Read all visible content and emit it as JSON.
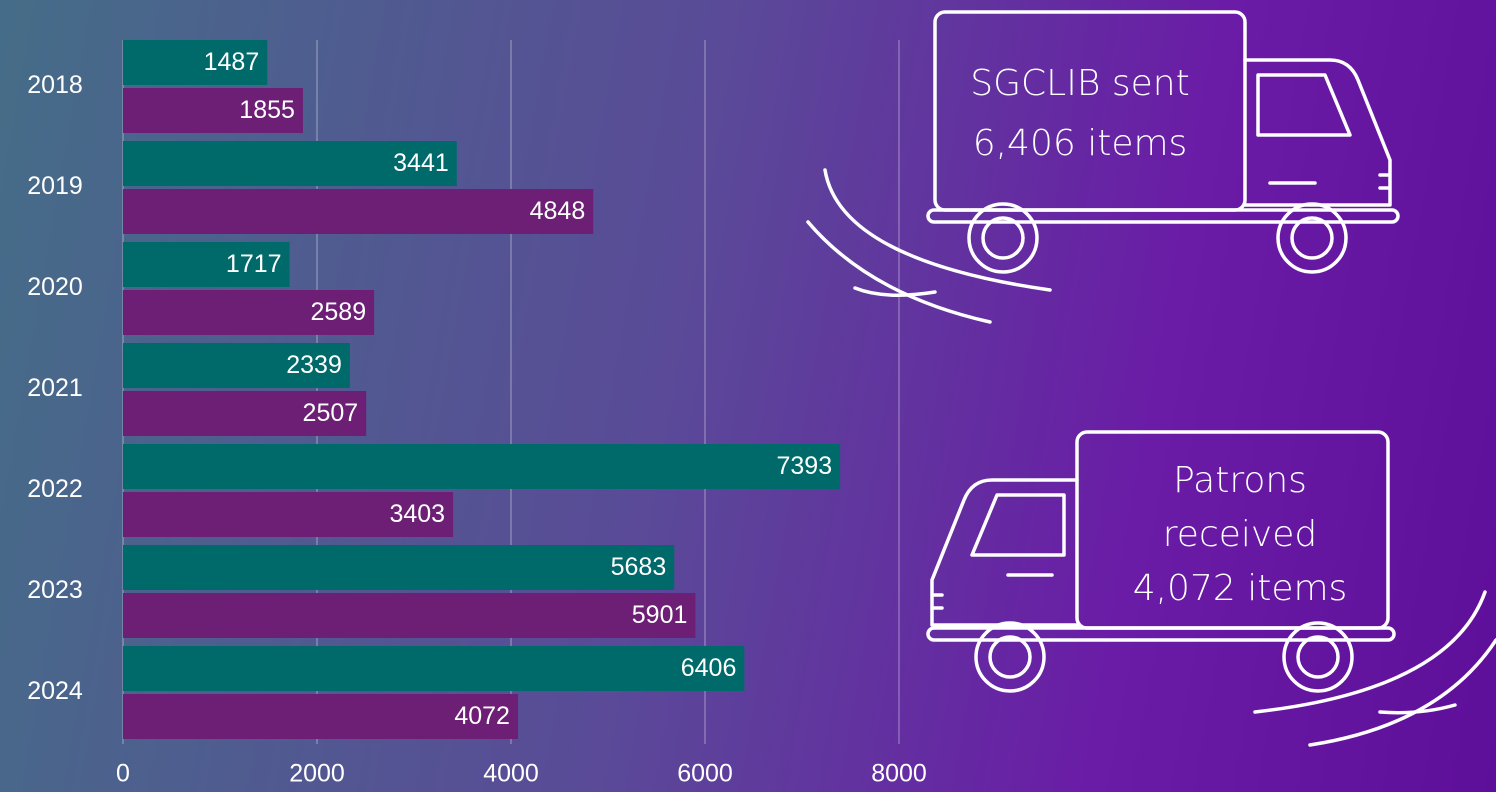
{
  "chart_data": {
    "type": "barh",
    "categories": [
      "2018",
      "2019",
      "2020",
      "2021",
      "2022",
      "2023",
      "2024"
    ],
    "series": [
      {
        "color": "#006a6a",
        "values": [
          1487,
          3441,
          1717,
          2339,
          7393,
          5683,
          6406
        ]
      },
      {
        "color": "#6c1f74",
        "values": [
          1855,
          4848,
          2589,
          2507,
          3403,
          5901,
          4072
        ]
      }
    ],
    "xlim": [
      0,
      8000
    ],
    "xticks": [
      0,
      2000,
      4000,
      6000,
      8000
    ],
    "grid": true,
    "annotations": [
      [
        "SGCLIB sent",
        "6,406 items"
      ],
      [
        "Patrons",
        "received",
        "4,072 items"
      ]
    ]
  }
}
